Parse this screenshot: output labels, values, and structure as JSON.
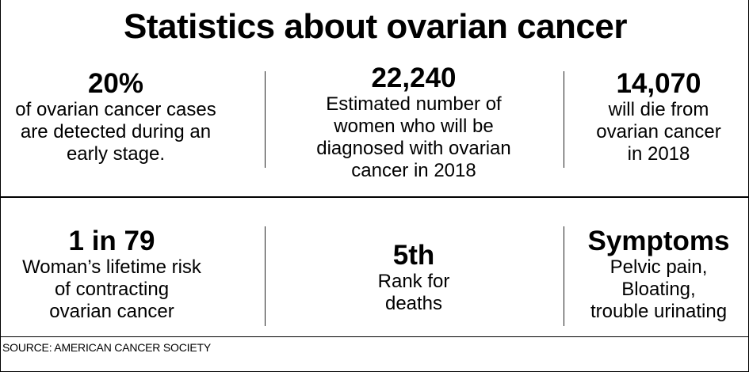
{
  "title": "Statistics about ovarian cancer",
  "stats": [
    {
      "value": "20%",
      "text": "of ovarian cancer cases\nare detected during an\nearly stage."
    },
    {
      "value": "22,240",
      "text": "Estimated number of\nwomen who will be\ndiagnosed with ovarian\ncancer in 2018"
    },
    {
      "value": "14,070",
      "text": "will die from\novarian cancer\nin 2018"
    },
    {
      "value": "1 in 79",
      "text": "Woman’s lifetime risk\nof contracting\novarian cancer"
    },
    {
      "value": "5th",
      "text": "Rank for\ndeaths"
    },
    {
      "value": "Symptoms",
      "text": "Pelvic pain,\nBloating,\ntrouble urinating"
    }
  ],
  "source": "SOURCE: AMERICAN CANCER SOCIETY"
}
